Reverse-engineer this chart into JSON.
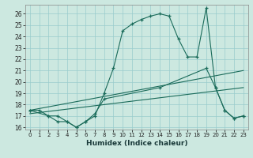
{
  "xlabel": "Humidex (Indice chaleur)",
  "bg_color": "#cce8e0",
  "grid_color": "#99cccc",
  "line_color": "#1a6b5a",
  "xlim": [
    -0.5,
    23.5
  ],
  "ylim": [
    15.8,
    26.8
  ],
  "yticks": [
    16,
    17,
    18,
    19,
    20,
    21,
    22,
    23,
    24,
    25,
    26
  ],
  "xticks": [
    0,
    1,
    2,
    3,
    4,
    5,
    6,
    7,
    8,
    9,
    10,
    11,
    12,
    13,
    14,
    15,
    16,
    17,
    18,
    19,
    20,
    21,
    22,
    23
  ],
  "series1_x": [
    0,
    1,
    2,
    3,
    4,
    5,
    6,
    7,
    8,
    9,
    10,
    11,
    12,
    13,
    14,
    15,
    16,
    17,
    18,
    19,
    20,
    21,
    22,
    23
  ],
  "series1_y": [
    17.5,
    17.5,
    17.0,
    16.5,
    16.5,
    16.0,
    16.5,
    17.0,
    19.0,
    21.2,
    24.5,
    25.1,
    25.5,
    25.8,
    26.0,
    25.8,
    23.8,
    22.2,
    22.2,
    26.5,
    19.5,
    17.5,
    16.8,
    17.0
  ],
  "series2_x": [
    0,
    2,
    3,
    4,
    5,
    6,
    7,
    8,
    14,
    19,
    20,
    21,
    22,
    23
  ],
  "series2_y": [
    17.5,
    17.0,
    17.0,
    16.5,
    16.0,
    16.5,
    17.2,
    18.5,
    19.5,
    21.2,
    19.5,
    17.5,
    16.8,
    17.0
  ],
  "series3_x": [
    0,
    23
  ],
  "series3_y": [
    17.5,
    21.0
  ],
  "series4_x": [
    0,
    23
  ],
  "series4_y": [
    17.2,
    19.5
  ]
}
